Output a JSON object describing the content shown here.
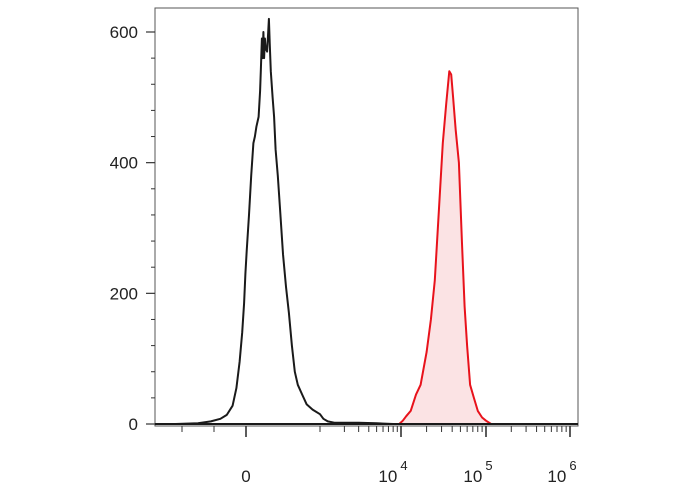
{
  "chart_data": {
    "type": "area",
    "title": "",
    "xlabel": "",
    "ylabel": "",
    "x_scale": "biexponential",
    "ylim": [
      0,
      600
    ],
    "y_ticks": [
      {
        "value": 0,
        "label": "0"
      },
      {
        "value": 200,
        "label": "200"
      },
      {
        "value": 400,
        "label": "400"
      },
      {
        "value": 600,
        "label": "600"
      }
    ],
    "x_ticks": [
      {
        "value": 0,
        "base": "0",
        "exp": ""
      },
      {
        "value": 10000,
        "base": "10",
        "exp": "4"
      },
      {
        "value": 100000,
        "base": "10",
        "exp": "5"
      },
      {
        "value": 1000000,
        "base": "10",
        "exp": "6"
      }
    ],
    "grid": false,
    "legend": "none",
    "series": [
      {
        "color": "#1a1a1a",
        "fill": "none",
        "points": [
          [
            -2200,
            0
          ],
          [
            -1500,
            1
          ],
          [
            -1100,
            4
          ],
          [
            -800,
            8
          ],
          [
            -600,
            14
          ],
          [
            -420,
            28
          ],
          [
            -300,
            55
          ],
          [
            -200,
            95
          ],
          [
            -120,
            140
          ],
          [
            -60,
            185
          ],
          [
            -20,
            230
          ],
          [
            10,
            265
          ],
          [
            40,
            320
          ],
          [
            70,
            380
          ],
          [
            100,
            430
          ],
          [
            120,
            440
          ],
          [
            140,
            455
          ],
          [
            170,
            470
          ],
          [
            190,
            510
          ],
          [
            200,
            540
          ],
          [
            215,
            590
          ],
          [
            225,
            560
          ],
          [
            235,
            600
          ],
          [
            245,
            560
          ],
          [
            255,
            590
          ],
          [
            265,
            575
          ],
          [
            285,
            570
          ],
          [
            300,
            600
          ],
          [
            310,
            620
          ],
          [
            322,
            580
          ],
          [
            335,
            540
          ],
          [
            360,
            500
          ],
          [
            380,
            470
          ],
          [
            400,
            420
          ],
          [
            430,
            380
          ],
          [
            460,
            330
          ],
          [
            500,
            260
          ],
          [
            540,
            210
          ],
          [
            580,
            170
          ],
          [
            620,
            120
          ],
          [
            660,
            80
          ],
          [
            700,
            60
          ],
          [
            760,
            45
          ],
          [
            820,
            30
          ],
          [
            900,
            22
          ],
          [
            1000,
            15
          ],
          [
            1100,
            8
          ],
          [
            1250,
            4
          ],
          [
            1500,
            2
          ],
          [
            2000,
            2
          ],
          [
            3000,
            2
          ],
          [
            5000,
            1
          ],
          [
            8000,
            0
          ]
        ]
      },
      {
        "color": "#e8121b",
        "fill": "#fbe3e4",
        "points": [
          [
            9500,
            0
          ],
          [
            10500,
            5
          ],
          [
            11500,
            12
          ],
          [
            13000,
            20
          ],
          [
            15000,
            45
          ],
          [
            17000,
            60
          ],
          [
            20000,
            110
          ],
          [
            22500,
            160
          ],
          [
            25000,
            220
          ],
          [
            28000,
            330
          ],
          [
            31000,
            430
          ],
          [
            34000,
            490
          ],
          [
            37000,
            540
          ],
          [
            39000,
            535
          ],
          [
            41000,
            500
          ],
          [
            44000,
            450
          ],
          [
            48000,
            400
          ],
          [
            52000,
            280
          ],
          [
            56000,
            180
          ],
          [
            60000,
            120
          ],
          [
            65000,
            60
          ],
          [
            72000,
            40
          ],
          [
            80000,
            20
          ],
          [
            90000,
            10
          ],
          [
            100000,
            5
          ],
          [
            115000,
            0
          ]
        ]
      }
    ]
  }
}
